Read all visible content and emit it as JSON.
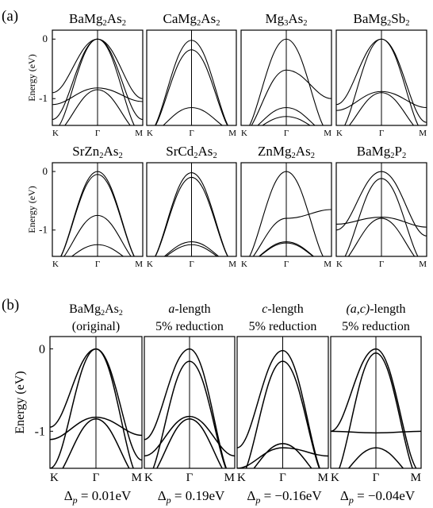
{
  "figure": {
    "panel_a_label": "(a)",
    "panel_b_label": "(b)",
    "ylabel": "Energy (eV)",
    "k_labels": [
      "K",
      "Γ",
      "M"
    ],
    "y_ticks": [
      "0",
      "-1"
    ],
    "formula_sub": [
      "BaMg",
      "2",
      "As",
      "2",
      "CaMg",
      "2",
      "As",
      "2",
      "Mg",
      "3",
      "As",
      "2",
      "BaMg",
      "2",
      "Sb",
      "2",
      "SrZn",
      "2",
      "As",
      "2",
      "SrCd",
      "2",
      "As",
      "2",
      "ZnMg",
      "2",
      "As",
      "2",
      "BaMg",
      "2",
      "P",
      "2",
      "BaMg",
      "2",
      "As",
      "2"
    ],
    "compounds_a": [
      {
        "formula": [
          [
            "BaMg",
            ""
          ],
          [
            "2",
            "sub"
          ],
          [
            "As",
            ""
          ],
          [
            "2",
            "sub"
          ]
        ]
      },
      {
        "formula": [
          [
            "CaMg",
            ""
          ],
          [
            "2",
            "sub"
          ],
          [
            "As",
            ""
          ],
          [
            "2",
            "sub"
          ]
        ]
      },
      {
        "formula": [
          [
            "Mg",
            ""
          ],
          [
            "3",
            "sub"
          ],
          [
            "As",
            ""
          ],
          [
            "2",
            "sub"
          ]
        ]
      },
      {
        "formula": [
          [
            "BaMg",
            ""
          ],
          [
            "2",
            "sub"
          ],
          [
            "Sb",
            ""
          ],
          [
            "2",
            "sub"
          ]
        ]
      },
      {
        "formula": [
          [
            "SrZn",
            ""
          ],
          [
            "2",
            "sub"
          ],
          [
            "As",
            ""
          ],
          [
            "2",
            "sub"
          ]
        ]
      },
      {
        "formula": [
          [
            "SrCd",
            ""
          ],
          [
            "2",
            "sub"
          ],
          [
            "As",
            ""
          ],
          [
            "2",
            "sub"
          ]
        ]
      },
      {
        "formula": [
          [
            "ZnMg",
            ""
          ],
          [
            "2",
            "sub"
          ],
          [
            "As",
            ""
          ],
          [
            "2",
            "sub"
          ]
        ]
      },
      {
        "formula": [
          [
            "BaMg",
            ""
          ],
          [
            "2",
            "sub"
          ],
          [
            "P",
            ""
          ],
          [
            "2",
            "sub"
          ]
        ]
      }
    ],
    "panels_b": [
      {
        "title_line1": [
          [
            "BaMg",
            ""
          ],
          [
            "2",
            "sub"
          ],
          [
            "As",
            ""
          ],
          [
            "2",
            "sub"
          ]
        ],
        "title_line2": "(original)",
        "delta_label": "Δp = 0.01eV",
        "delta_value": "0.01eV"
      },
      {
        "title_line1": [
          [
            "a",
            "italic"
          ],
          [
            "-length",
            ""
          ]
        ],
        "title_line2": "5% reduction",
        "delta_label": "Δp = 0.19eV",
        "delta_value": "0.19eV"
      },
      {
        "title_line1": [
          [
            "c",
            "italic"
          ],
          [
            "-length",
            ""
          ]
        ],
        "title_line2": "5% reduction",
        "delta_label": "Δp = −0.16eV",
        "delta_value": "−0.16eV"
      },
      {
        "title_line1": [
          [
            "(a,c)",
            "italic"
          ],
          [
            "-length",
            ""
          ]
        ],
        "title_line2": "5% reduction",
        "delta_label": "Δp = −0.04eV",
        "delta_value": "−0.04eV"
      }
    ],
    "delta_symbol": "Δ",
    "delta_sub": "p",
    "delta_eq": " = "
  },
  "chart_data": {
    "type": "line",
    "x_points": [
      "K",
      "Γ",
      "M"
    ],
    "ylabel": "Energy (eV)",
    "ylim": [
      -1.45,
      0.15
    ],
    "bands_a": [
      [
        [
          -0.9,
          0.0,
          -1.35
        ],
        [
          -1.35,
          0.0,
          -1.6
        ],
        [
          -1.1,
          -0.82,
          -1.05
        ],
        [
          -1.6,
          -0.85,
          -1.6
        ],
        [
          -1.55,
          -0.0,
          -1.0
        ]
      ],
      [
        [
          -1.6,
          -0.18,
          -1.6
        ],
        [
          -1.6,
          -0.02,
          -1.6
        ],
        [
          -1.6,
          -1.15,
          -1.55
        ]
      ],
      [
        [
          -1.6,
          0.0,
          -1.6
        ],
        [
          -1.6,
          -0.52,
          -1.0
        ],
        [
          -1.6,
          -1.15,
          -1.6
        ],
        [
          -1.6,
          -1.3,
          -1.6
        ]
      ],
      [
        [
          -1.1,
          0.0,
          -1.4
        ],
        [
          -1.6,
          0.0,
          -1.6
        ],
        [
          -1.2,
          -0.88,
          -1.15
        ],
        [
          -1.6,
          -0.9,
          -1.6
        ]
      ],
      [
        [
          -1.6,
          0.0,
          -1.6
        ],
        [
          -1.6,
          -0.05,
          -1.6
        ],
        [
          -1.6,
          -0.75,
          -1.6
        ],
        [
          -1.6,
          -1.25,
          -1.6
        ]
      ],
      [
        [
          -1.6,
          -0.02,
          -1.6
        ],
        [
          -1.6,
          -0.1,
          -1.6
        ],
        [
          -1.6,
          -1.2,
          -1.6
        ],
        [
          -1.6,
          -1.25,
          -1.6
        ]
      ],
      [
        [
          -1.6,
          0.0,
          -1.6
        ],
        [
          -1.6,
          -0.8,
          -0.65
        ],
        [
          -1.6,
          -1.2,
          -1.6
        ],
        [
          -1.6,
          -1.22,
          -1.6
        ]
      ],
      [
        [
          -1.0,
          0.0,
          -1.1
        ],
        [
          -1.6,
          -0.12,
          -1.6
        ],
        [
          -0.9,
          -0.78,
          -0.95
        ],
        [
          -1.6,
          -0.8,
          -1.6
        ]
      ]
    ],
    "bands_b": [
      [
        [
          -0.95,
          0.0,
          -1.35
        ],
        [
          -1.45,
          0.0,
          -1.6
        ],
        [
          -1.1,
          -0.83,
          -1.05
        ],
        [
          -1.6,
          -0.85,
          -1.6
        ]
      ],
      [
        [
          -1.1,
          0.0,
          -1.6
        ],
        [
          -1.6,
          -0.15,
          -1.6
        ],
        [
          -1.3,
          -0.82,
          -1.3
        ],
        [
          -1.6,
          -0.85,
          -1.6
        ]
      ],
      [
        [
          -1.2,
          -0.02,
          -1.6
        ],
        [
          -1.6,
          -0.15,
          -1.6
        ],
        [
          -1.6,
          -1.15,
          -1.6
        ],
        [
          -1.45,
          -1.2,
          -1.3
        ]
      ],
      [
        [
          -1.0,
          0.0,
          -1.5
        ],
        [
          -1.6,
          -0.05,
          -1.6
        ],
        [
          -1.0,
          -1.02,
          -1.0
        ],
        [
          -1.6,
          -1.2,
          -1.6
        ]
      ]
    ]
  }
}
